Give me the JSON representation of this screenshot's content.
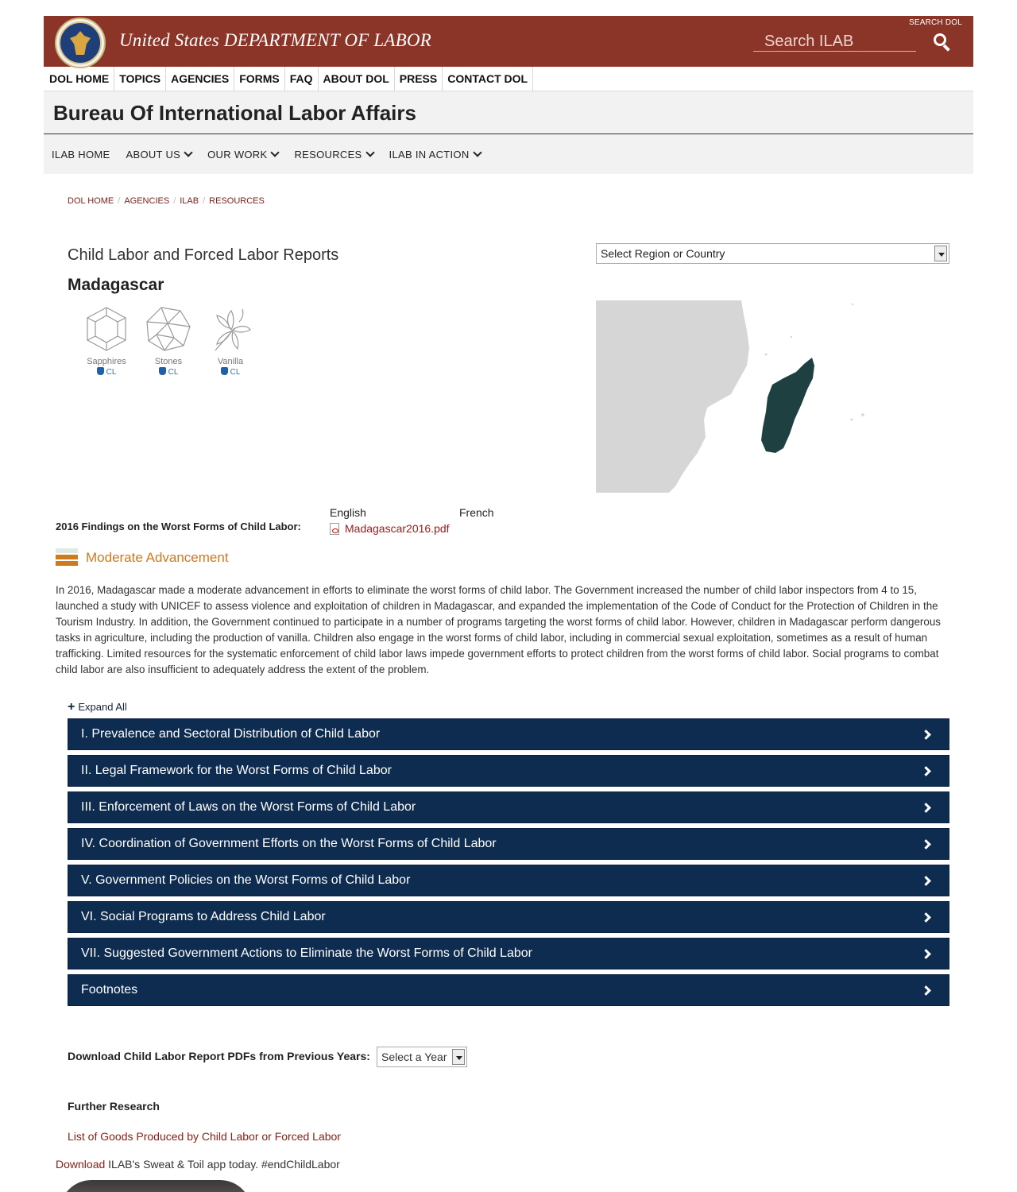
{
  "header": {
    "dept_title": "United States DEPARTMENT OF LABOR",
    "search_label": "SEARCH DOL",
    "search_placeholder": "Search ILAB"
  },
  "topnav": [
    "DOL HOME",
    "TOPICS",
    "AGENCIES",
    "FORMS",
    "FAQ",
    "ABOUT DOL",
    "PRESS",
    "CONTACT DOL"
  ],
  "bureau_title": "Bureau Of International Labor Affairs",
  "subnav": [
    {
      "label": "ILAB HOME",
      "dropdown": false
    },
    {
      "label": "ABOUT US",
      "dropdown": true
    },
    {
      "label": "OUR WORK",
      "dropdown": true
    },
    {
      "label": "RESOURCES",
      "dropdown": true
    },
    {
      "label": "ILAB IN ACTION",
      "dropdown": true
    }
  ],
  "breadcrumb": [
    "DOL HOME",
    "AGENCIES",
    "ILAB",
    "RESOURCES"
  ],
  "page_title": "Child Labor and Forced Labor Reports",
  "country": "Madagascar",
  "goods": [
    {
      "name": "Sapphires",
      "tag": "CL",
      "icon": "sapphire-icon"
    },
    {
      "name": "Stones",
      "tag": "CL",
      "icon": "stone-icon"
    },
    {
      "name": "Vanilla",
      "tag": "CL",
      "icon": "vanilla-icon"
    }
  ],
  "country_select": "Select Region or Country",
  "findings_label": "2016 Findings on the Worst Forms of Child Labor:",
  "lang_english": "English",
  "lang_french": "French",
  "pdf_link": "Madagascar2016.pdf",
  "advancement": "Moderate Advancement",
  "summary": "In 2016, Madagascar made a moderate advancement in efforts to eliminate the worst forms of child labor. The Government increased the number of child labor inspectors from 4 to 15, launched a study with UNICEF to assess violence and exploitation of children in Madagascar, and expanded the implementation of the Code of Conduct for the Protection of Children in the Tourism Industry. In addition, the Government continued to participate in a number of programs targeting the worst forms of child labor. However, children in Madagascar perform dangerous tasks in agriculture, including the production of vanilla. Children also engage in the worst forms of child labor, including in commercial sexual exploitation, sometimes as a result of human trafficking. Limited resources for the systematic enforcement of child labor laws impede government efforts to protect children from the worst forms of child labor. Social programs to combat child labor are also insufficient to adequately address the extent of the problem.",
  "expand_all": "Expand All",
  "sections": [
    "I. Prevalence and Sectoral Distribution of Child Labor",
    "II. Legal Framework for the Worst Forms of Child Labor",
    "III. Enforcement of Laws on the Worst Forms of Child Labor",
    "IV. Coordination of Government Efforts on the Worst Forms of Child Labor",
    "V. Government Policies on the Worst Forms of Child Labor",
    "VI. Social Programs to Address Child Labor",
    "VII. Suggested Government Actions to Eliminate the Worst Forms of Child Labor",
    "Footnotes"
  ],
  "download_prev_label": "Download Child Labor Report PDFs from Previous Years:",
  "year_select": "Select a Year",
  "further_research": "Further Research",
  "goods_list_link": "List of Goods Produced by Child Labor or Forced Labor",
  "app_download": "Download",
  "app_text": " ILAB's Sweat & Toil app today. #endChildLabor",
  "colors": {
    "header_red": "#8b3428",
    "accordion_navy": "#0e2c50",
    "advancement_orange": "#d07a1e",
    "map_highlight": "#1e4040",
    "link_red": "#8a2016"
  }
}
